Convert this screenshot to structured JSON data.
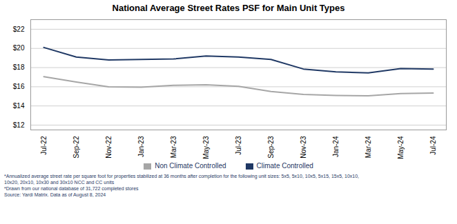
{
  "chart_data": {
    "type": "line",
    "title": "National Average Street Rates PSF for Main Unit Types",
    "categories": [
      "Jul-22",
      "Sep-22",
      "Nov-22",
      "Jan-23",
      "Mar-23",
      "May-23",
      "Jul-23",
      "Sep-23",
      "Nov-23",
      "Jan-24",
      "Mar-24",
      "May-24",
      "Jul-24"
    ],
    "series": [
      {
        "name": "Non Climate Controlled",
        "color": "#a6a6a6",
        "values": [
          17.05,
          16.5,
          16.0,
          15.95,
          16.15,
          16.2,
          16.05,
          15.5,
          15.2,
          15.1,
          15.05,
          15.3,
          15.35
        ]
      },
      {
        "name": "Climate Controlled",
        "color": "#1f3864",
        "values": [
          20.1,
          19.1,
          18.8,
          18.85,
          18.9,
          19.2,
          19.1,
          18.85,
          17.85,
          17.55,
          17.45,
          17.9,
          17.85
        ]
      }
    ],
    "ylim": [
      11.5,
      23.0
    ],
    "yticks": [
      {
        "value": 12,
        "label": "$12"
      },
      {
        "value": 14,
        "label": "$14"
      },
      {
        "value": 16,
        "label": "$16"
      },
      {
        "value": 18,
        "label": "$18"
      },
      {
        "value": 20,
        "label": "$20"
      },
      {
        "value": 22,
        "label": "$22"
      }
    ],
    "grid": true,
    "legend": "bottom",
    "annotations": [
      "*Annualized average street rate per square foot for properties stabilized at 36 months after completion for the following unit sizes: 5x5, 5x10, 10x5, 5x15, 15x5, 10x10,",
      "10x20, 20x10, 10x30 and 30x10 NCC and CC units",
      "*Drawn from our national database of 31,722 completed stores",
      "Source: Yardi Matrix. Data as of August 8, 2024"
    ]
  }
}
